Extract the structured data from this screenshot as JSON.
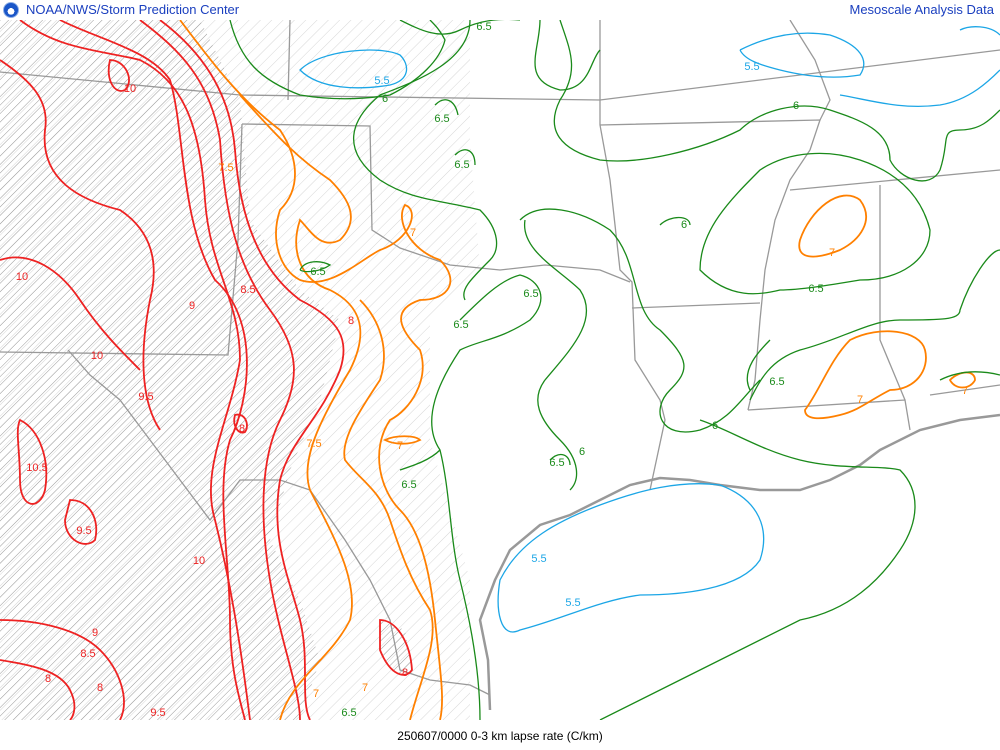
{
  "header": {
    "agency": "NOAA/NWS/Storm Prediction Center",
    "product": "Mesoscale Analysis Data",
    "logo_icon": "noaa-logo-icon"
  },
  "footer": {
    "caption": "250607/0000 0-3 km lapse rate (C/km)"
  },
  "map": {
    "parameter": "0-3 km lapse rate",
    "units": "C/km",
    "hatching": "steep lapse rate areas",
    "contour_colors": {
      "5.5": "#1ca6e6",
      "6": "#1a8a1a",
      "6.5": "#1a8a1a",
      "7": "#ff8000",
      "7.5": "#ff8000",
      "8": "#ee2222",
      "8.5": "#ee2222",
      "9": "#ee2222",
      "9.5": "#ee2222",
      "10": "#ee2222",
      "10.5": "#ee2222"
    },
    "border_color": "#999999",
    "contour_labels": [
      "6.5",
      "5.5",
      "6",
      "6.5",
      "6.5",
      "10",
      "7.5",
      "7",
      "6.5",
      "8.5",
      "9",
      "8",
      "6.5",
      "6.5",
      "6",
      "10",
      "10",
      "9.5",
      "8",
      "7.5",
      "7",
      "6.5",
      "6.5",
      "6",
      "10.5",
      "9.5",
      "10",
      "5.5",
      "5.5",
      "9",
      "8.5",
      "8",
      "8",
      "9.5",
      "7",
      "7",
      "6.5",
      "8",
      "5.5",
      "6",
      "7",
      "6.5",
      "6.5",
      "6",
      "7",
      "7"
    ]
  }
}
